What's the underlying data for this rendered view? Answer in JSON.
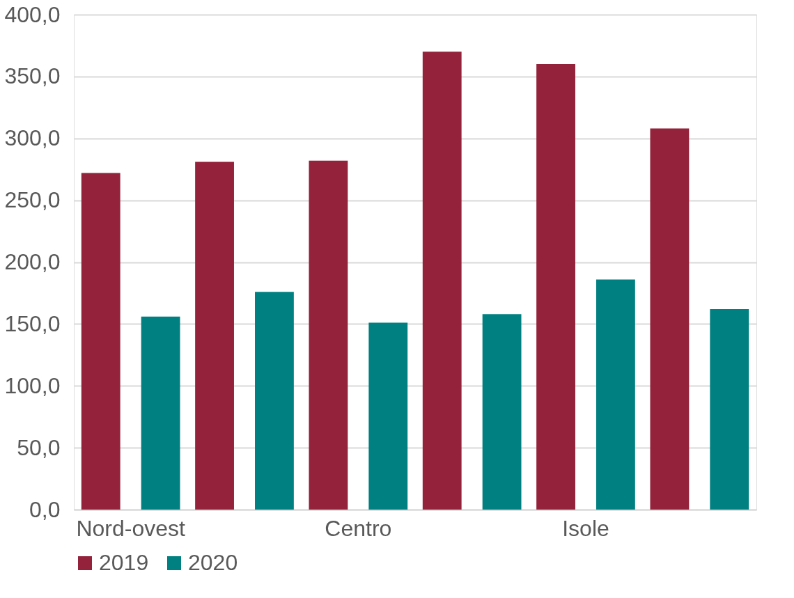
{
  "chart_data": {
    "type": "bar",
    "categories": [
      "Nord-ovest",
      null,
      "Centro",
      null,
      "Isole",
      null
    ],
    "series": [
      {
        "name": "2019",
        "color": "#93223a",
        "values": [
          272,
          281,
          282,
          370,
          360,
          308
        ]
      },
      {
        "name": "2020",
        "color": "#008080",
        "values": [
          156,
          176,
          151,
          158,
          186,
          162
        ]
      }
    ],
    "ylim": [
      0,
      400
    ],
    "yticks": [
      {
        "value": 0,
        "label": "0,0"
      },
      {
        "value": 50,
        "label": "50,0"
      },
      {
        "value": 100,
        "label": "100,0"
      },
      {
        "value": 150,
        "label": "150,0"
      },
      {
        "value": 200,
        "label": "200,0"
      },
      {
        "value": 250,
        "label": "250,0"
      },
      {
        "value": 300,
        "label": "300,0"
      },
      {
        "value": 350,
        "label": "350,0"
      },
      {
        "value": 400,
        "label": "400,0"
      }
    ],
    "grid": "y",
    "legend": "bottom"
  }
}
